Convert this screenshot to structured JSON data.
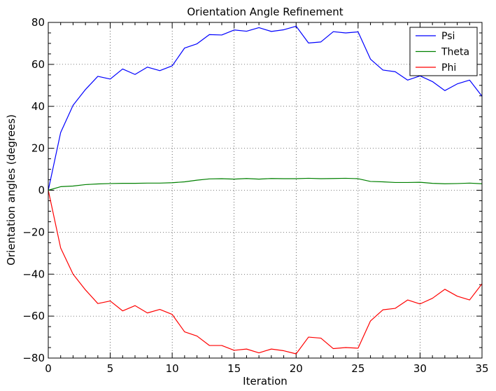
{
  "chart_data": {
    "type": "line",
    "title": "Orientation Angle Refinement",
    "xlabel": "Iteration",
    "ylabel": "Orientation angles (degrees)",
    "xlim": [
      0,
      35
    ],
    "ylim": [
      -80,
      80
    ],
    "xticks": [
      0,
      5,
      10,
      15,
      20,
      25,
      30,
      35
    ],
    "yticks": [
      -80,
      -60,
      -40,
      -20,
      0,
      20,
      40,
      60,
      80
    ],
    "xtick_labels": [
      "0",
      "5",
      "10",
      "15",
      "20",
      "25",
      "30",
      "35"
    ],
    "ytick_labels": [
      "−80",
      "−60",
      "−40",
      "−20",
      "0",
      "20",
      "40",
      "60",
      "80"
    ],
    "grid": true,
    "legend_position": "top-right",
    "x": [
      0,
      1,
      2,
      3,
      4,
      5,
      6,
      7,
      8,
      9,
      10,
      11,
      12,
      13,
      14,
      15,
      16,
      17,
      18,
      19,
      20,
      21,
      22,
      23,
      24,
      25,
      26,
      27,
      28,
      29,
      30,
      31,
      32,
      33,
      34,
      35
    ],
    "series": [
      {
        "name": "Psi",
        "color": "#0000ff",
        "values": [
          0,
          27.5,
          40.5,
          48,
          54.3,
          53,
          57.8,
          55.2,
          58.7,
          57,
          59.3,
          67.8,
          69.8,
          74.2,
          74,
          76.4,
          75.8,
          77.5,
          75.7,
          76.5,
          78.2,
          70.2,
          70.7,
          75.6,
          75,
          75.5,
          62.5,
          57.3,
          56.5,
          52.5,
          54.5,
          51.8,
          47.5,
          50.7,
          52.5,
          44.8
        ]
      },
      {
        "name": "Theta",
        "color": "#008000",
        "values": [
          0,
          1.7,
          2,
          2.7,
          3,
          3.2,
          3.3,
          3.3,
          3.4,
          3.4,
          3.6,
          4,
          4.8,
          5.4,
          5.5,
          5.3,
          5.6,
          5.3,
          5.6,
          5.5,
          5.5,
          5.7,
          5.5,
          5.6,
          5.7,
          5.5,
          4.2,
          4,
          3.7,
          3.7,
          3.8,
          3.3,
          3.1,
          3.2,
          3.4,
          3.1
        ]
      },
      {
        "name": "Phi",
        "color": "#ff0000",
        "values": [
          0,
          -27.5,
          -40,
          -47.5,
          -54,
          -52.8,
          -57.5,
          -55,
          -58.5,
          -56.8,
          -59.2,
          -67.5,
          -69.5,
          -74,
          -74,
          -76.3,
          -75.7,
          -77.5,
          -75.7,
          -76.5,
          -78,
          -70,
          -70.5,
          -75.5,
          -75,
          -75.3,
          -62.3,
          -57,
          -56.3,
          -52.3,
          -54.2,
          -51.5,
          -47.2,
          -50.5,
          -52.3,
          -44.6
        ]
      }
    ]
  }
}
